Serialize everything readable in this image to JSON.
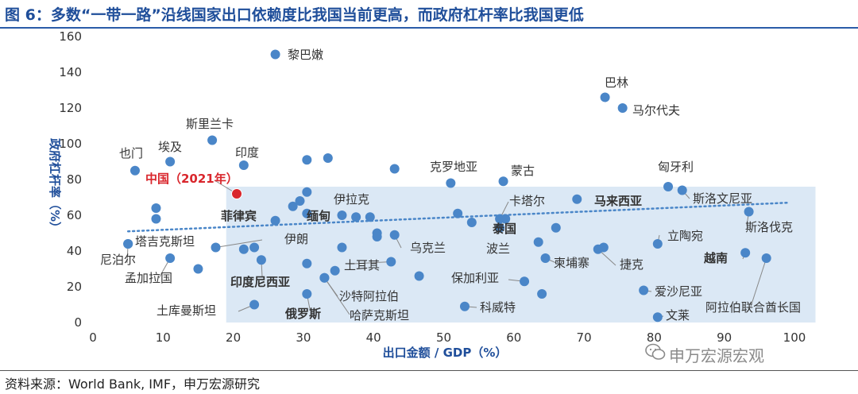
{
  "figure": {
    "title": "图 6：多数“一带一路”沿线国家出口依赖度比我国当前更高，而政府杠杆率比我国更低",
    "source": "资料来源：World Bank, IMF，申万宏源研究",
    "watermark": "申万宏源宏观"
  },
  "colors": {
    "title": "#1f4e9a",
    "point": "#4a86c8",
    "highlight_point": "#d9262c",
    "shaded_region": "#dbe8f5",
    "trendline": "#4a86c8",
    "axis_label": "#1f4e9a"
  },
  "chart_data": {
    "type": "scatter",
    "xlabel": "出口金额 / GDP（%）",
    "ylabel": "政府杠杆率（%）",
    "xlim": [
      0,
      100
    ],
    "ylim": [
      0,
      160
    ],
    "xticks": [
      0,
      10,
      20,
      30,
      40,
      50,
      60,
      70,
      80,
      90,
      100
    ],
    "yticks": [
      0,
      20,
      40,
      60,
      80,
      100,
      120,
      140,
      160
    ],
    "grid": false,
    "shaded_region": {
      "x": [
        19,
        103
      ],
      "y": [
        0,
        76
      ]
    },
    "trendline": {
      "style": "dotted",
      "from": [
        5,
        51
      ],
      "to": [
        99,
        67
      ]
    },
    "points": [
      {
        "x": 26,
        "y": 150,
        "label": "黎巴嫩"
      },
      {
        "x": 73,
        "y": 126,
        "label": "巴林"
      },
      {
        "x": 75.5,
        "y": 120,
        "label": "马尔代夫"
      },
      {
        "x": 17,
        "y": 102,
        "label": "斯里兰卡"
      },
      {
        "x": 11,
        "y": 90,
        "label": "埃及"
      },
      {
        "x": 6,
        "y": 85,
        "label": "也门"
      },
      {
        "x": 21.5,
        "y": 88,
        "label": "印度"
      },
      {
        "x": 30.5,
        "y": 91,
        "label": ""
      },
      {
        "x": 33.5,
        "y": 92,
        "label": ""
      },
      {
        "x": 43,
        "y": 86,
        "label": ""
      },
      {
        "x": 51,
        "y": 78,
        "label": "克罗地亚"
      },
      {
        "x": 58.5,
        "y": 79,
        "label": "蒙古"
      },
      {
        "x": 82,
        "y": 76,
        "label": "匈牙利"
      },
      {
        "x": 84,
        "y": 74,
        "label": "斯洛文尼亚"
      },
      {
        "x": 20.5,
        "y": 72,
        "label": "中国（2021年）",
        "highlight": true
      },
      {
        "x": 69,
        "y": 69,
        "label": "马来西亚",
        "bold": true
      },
      {
        "x": 9,
        "y": 64,
        "label": ""
      },
      {
        "x": 9,
        "y": 58,
        "label": ""
      },
      {
        "x": 30.5,
        "y": 73,
        "label": ""
      },
      {
        "x": 29.5,
        "y": 68,
        "label": ""
      },
      {
        "x": 28.5,
        "y": 65,
        "label": ""
      },
      {
        "x": 26,
        "y": 57,
        "label": "菲律宾",
        "bold": true
      },
      {
        "x": 35.5,
        "y": 60,
        "label": "伊拉克"
      },
      {
        "x": 37.5,
        "y": 59,
        "label": ""
      },
      {
        "x": 39.5,
        "y": 59,
        "label": ""
      },
      {
        "x": 30.5,
        "y": 61,
        "label": "缅甸",
        "bold": true
      },
      {
        "x": 52,
        "y": 61,
        "label": ""
      },
      {
        "x": 54,
        "y": 56,
        "label": ""
      },
      {
        "x": 58,
        "y": 58,
        "label": "卡塔尔"
      },
      {
        "x": 58.8,
        "y": 58,
        "label": ""
      },
      {
        "x": 58,
        "y": 53,
        "label": "泰国",
        "bold": true
      },
      {
        "x": 66,
        "y": 53,
        "label": ""
      },
      {
        "x": 40.5,
        "y": 50,
        "label": ""
      },
      {
        "x": 43,
        "y": 49,
        "label": "乌克兰"
      },
      {
        "x": 40.5,
        "y": 48,
        "label": ""
      },
      {
        "x": 63.5,
        "y": 45,
        "label": "波兰"
      },
      {
        "x": 93.5,
        "y": 62,
        "label": "斯洛伐克"
      },
      {
        "x": 80.5,
        "y": 44,
        "label": "立陶宛"
      },
      {
        "x": 5,
        "y": 44,
        "label": "塔吉克斯坦"
      },
      {
        "x": 5,
        "y": 44,
        "label": "尼泊尔"
      },
      {
        "x": 11,
        "y": 36,
        "label": "孟加拉国"
      },
      {
        "x": 15,
        "y": 30,
        "label": ""
      },
      {
        "x": 17.5,
        "y": 42,
        "label": "伊朗"
      },
      {
        "x": 21.5,
        "y": 41,
        "label": ""
      },
      {
        "x": 23,
        "y": 42,
        "label": ""
      },
      {
        "x": 24,
        "y": 35,
        "label": "印度尼西亚",
        "bold": true
      },
      {
        "x": 35.5,
        "y": 42,
        "label": ""
      },
      {
        "x": 30.5,
        "y": 33,
        "label": ""
      },
      {
        "x": 42.5,
        "y": 34,
        "label": "土耳其"
      },
      {
        "x": 34.5,
        "y": 29,
        "label": ""
      },
      {
        "x": 46.5,
        "y": 26,
        "label": ""
      },
      {
        "x": 33,
        "y": 25,
        "label": "沙特阿拉伯"
      },
      {
        "x": 61.5,
        "y": 23,
        "label": "保加利亚"
      },
      {
        "x": 64.5,
        "y": 36,
        "label": "柬埔寨"
      },
      {
        "x": 72,
        "y": 41,
        "label": "捷克"
      },
      {
        "x": 72.8,
        "y": 42,
        "label": ""
      },
      {
        "x": 93,
        "y": 39,
        "label": "越南",
        "bold": true
      },
      {
        "x": 96,
        "y": 36,
        "label": "阿拉伯联合酋长国"
      },
      {
        "x": 78.5,
        "y": 18,
        "label": "爱沙尼亚"
      },
      {
        "x": 64,
        "y": 16,
        "label": ""
      },
      {
        "x": 30.5,
        "y": 16,
        "label": "俄罗斯",
        "bold": true
      },
      {
        "x": 33,
        "y": 25,
        "label": "哈萨克斯坦"
      },
      {
        "x": 23,
        "y": 10,
        "label": "土库曼斯坦"
      },
      {
        "x": 53,
        "y": 9,
        "label": "科威特"
      },
      {
        "x": 80.5,
        "y": 3,
        "label": "文莱"
      }
    ]
  }
}
